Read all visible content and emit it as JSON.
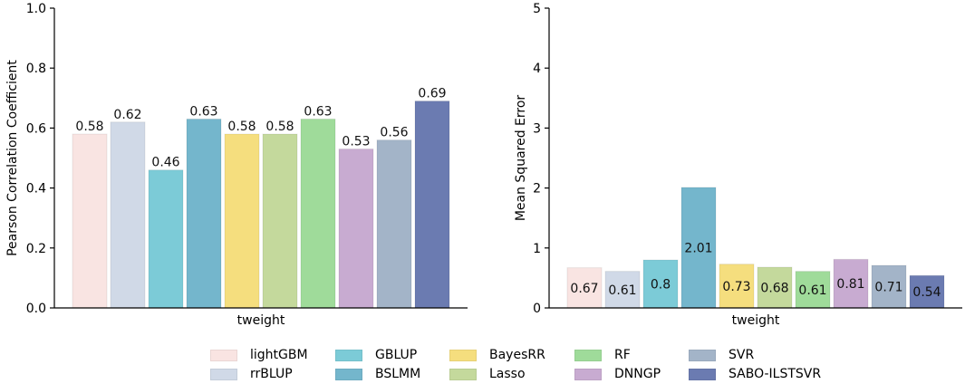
{
  "chart_data": [
    {
      "type": "bar",
      "title": "",
      "xlabel": "tweight",
      "ylabel": "Pearson Correlation Coefficient",
      "ylim": [
        0,
        1.0
      ],
      "yticks": [
        "0.0",
        "0.2",
        "0.4",
        "0.6",
        "0.8",
        "1.0"
      ],
      "yticks_values": [
        0,
        0.2,
        0.4,
        0.6,
        0.8,
        1.0
      ],
      "label_position": "above",
      "series": [
        {
          "name": "lightGBM",
          "value": 0.58,
          "label": "0.58"
        },
        {
          "name": "rrBLUP",
          "value": 0.62,
          "label": "0.62"
        },
        {
          "name": "GBLUP",
          "value": 0.46,
          "label": "0.46"
        },
        {
          "name": "BSLMM",
          "value": 0.63,
          "label": "0.63"
        },
        {
          "name": "BayesRR",
          "value": 0.58,
          "label": "0.58"
        },
        {
          "name": "Lasso",
          "value": 0.58,
          "label": "0.58"
        },
        {
          "name": "RF",
          "value": 0.63,
          "label": "0.63"
        },
        {
          "name": "DNNGP",
          "value": 0.53,
          "label": "0.53"
        },
        {
          "name": "SVR",
          "value": 0.56,
          "label": "0.56"
        },
        {
          "name": "SABO-ILSTSVR",
          "value": 0.69,
          "label": "0.69"
        }
      ]
    },
    {
      "type": "bar",
      "title": "",
      "xlabel": "tweight",
      "ylabel": "Mean Squared Error",
      "ylim": [
        0,
        5
      ],
      "yticks": [
        "0",
        "1",
        "2",
        "3",
        "4",
        "5"
      ],
      "yticks_values": [
        0,
        1,
        2,
        3,
        4,
        5
      ],
      "label_position": "inside-middle",
      "series": [
        {
          "name": "lightGBM",
          "value": 0.67,
          "label": "0.67"
        },
        {
          "name": "rrBLUP",
          "value": 0.61,
          "label": "0.61"
        },
        {
          "name": "GBLUP",
          "value": 0.8,
          "label": "0.8"
        },
        {
          "name": "BSLMM",
          "value": 2.01,
          "label": "2.01"
        },
        {
          "name": "BayesRR",
          "value": 0.73,
          "label": "0.73"
        },
        {
          "name": "Lasso",
          "value": 0.68,
          "label": "0.68"
        },
        {
          "name": "RF",
          "value": 0.61,
          "label": "0.61"
        },
        {
          "name": "DNNGP",
          "value": 0.81,
          "label": "0.81"
        },
        {
          "name": "SVR",
          "value": 0.71,
          "label": "0.71"
        },
        {
          "name": "SABO-ILSTSVR",
          "value": 0.54,
          "label": "0.54"
        }
      ]
    }
  ],
  "legend": {
    "placement": "bottom-center",
    "columns": [
      [
        "lightGBM",
        "rrBLUP"
      ],
      [
        "GBLUP",
        "BSLMM"
      ],
      [
        "BayesRR",
        "Lasso"
      ],
      [
        "RF",
        "DNNGP"
      ],
      [
        "SVR",
        "SABO-ILSTSVR"
      ]
    ]
  },
  "colors": {
    "lightGBM": "#f9e4e2",
    "rrBLUP": "#d0d9e7",
    "GBLUP": "#7ccbd7",
    "BSLMM": "#74b6cc",
    "BayesRR": "#f5de7e",
    "Lasso": "#c4d99c",
    "RF": "#9fdb9a",
    "DNNGP": "#c8abd1",
    "SVR": "#a3b4c8",
    "SABO-ILSTSVR": "#6b7bb1"
  }
}
